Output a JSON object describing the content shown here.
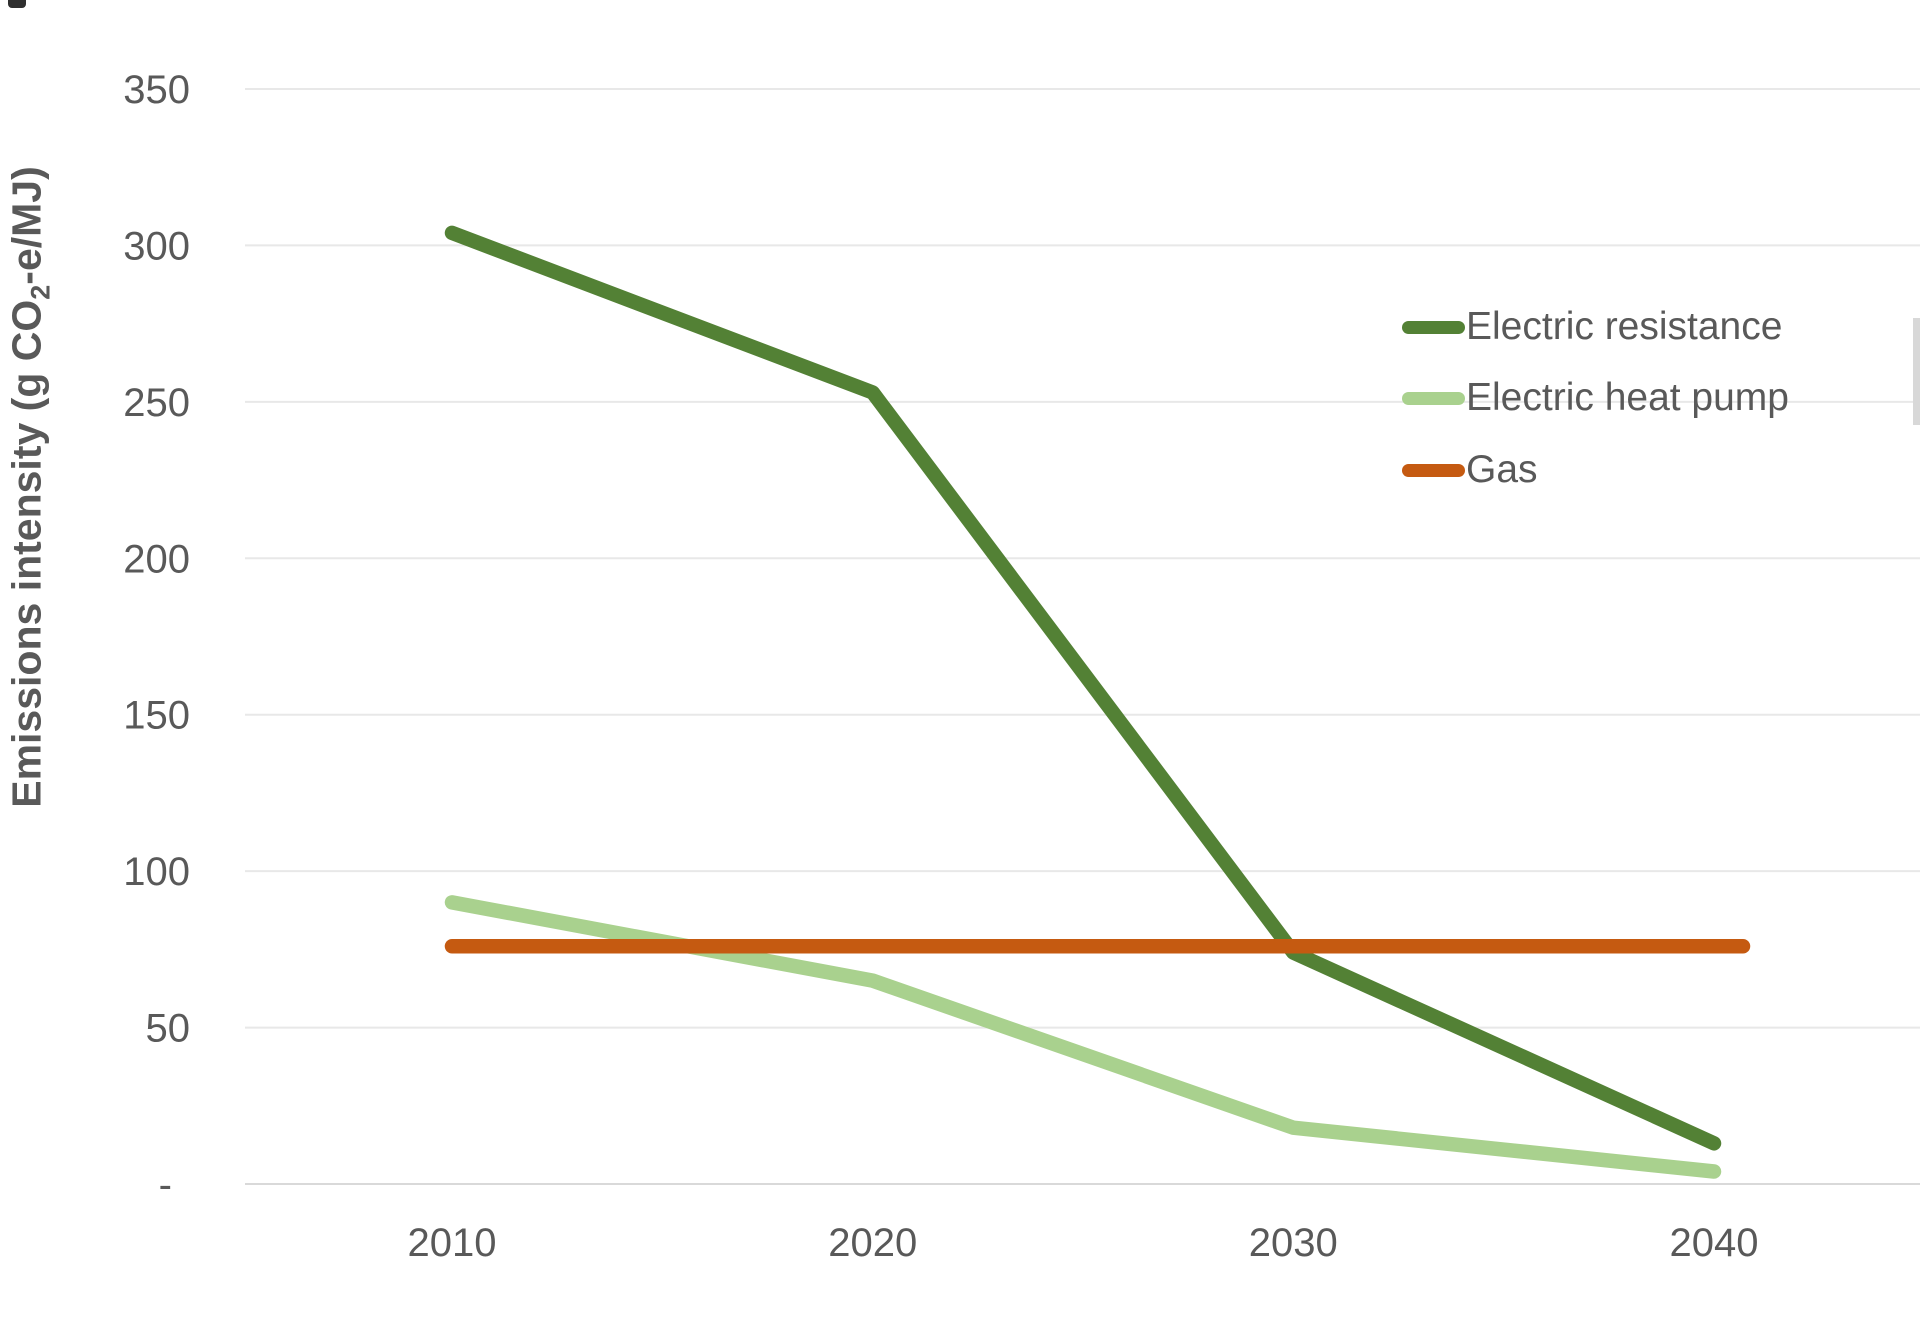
{
  "style": {
    "text_color": "#595959",
    "grid_color": "#e8e8e8",
    "axis_line_color": "#d9d9d9",
    "background": "#ffffff"
  },
  "chart_data": {
    "type": "line",
    "title": "",
    "xlabel": "",
    "ylabel": "Emissions intensity (g CO2-e/MJ)",
    "ylabel_parts": {
      "pre": "Emissions intensity (g CO",
      "sub": "2",
      "post": "-e/MJ)"
    },
    "categories": [
      "2010",
      "2020",
      "2030",
      "2040"
    ],
    "series": [
      {
        "name": "Electric resistance",
        "values": [
          304,
          253,
          74,
          13
        ],
        "color": "#538135"
      },
      {
        "name": "Electric heat pump",
        "values": [
          90,
          65,
          18,
          4
        ],
        "color": "#a9d18e"
      },
      {
        "name": "Gas",
        "values": [
          76,
          76,
          76,
          76
        ],
        "color": "#c55a11",
        "extends_past_last_category": true
      }
    ],
    "y_axis": {
      "min": 0,
      "max": 350,
      "step": 50,
      "tick_labels": [
        "-",
        "50",
        "100",
        "150",
        "200",
        "250",
        "300",
        "350"
      ]
    },
    "x_axis": {
      "tick_labels": [
        "2010",
        "2020",
        "2030",
        "2040"
      ]
    },
    "grid": true,
    "legend_position": "right-upper"
  }
}
